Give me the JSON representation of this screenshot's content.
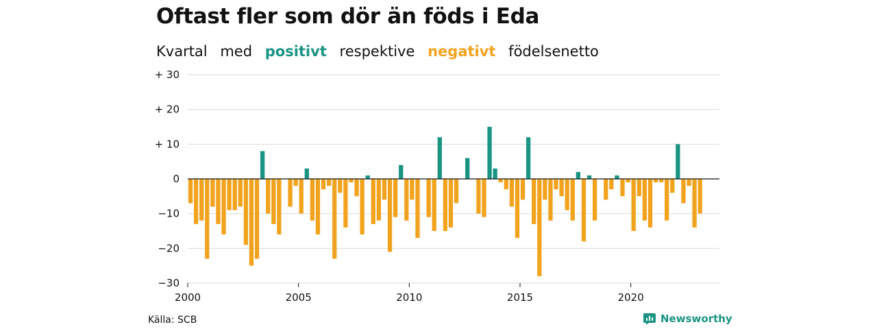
{
  "title": "Oftast fler som dör än föds i Eda",
  "subtitle": {
    "part1": "Kvartal",
    "part2": "med",
    "positive_word": "positivt",
    "part3": "respektive",
    "negative_word": "negativt",
    "part4": "födelsenetto"
  },
  "source": "Källa: SCB",
  "brand": "Newsworthy",
  "colors": {
    "positive": "#1a9483",
    "negative": "#f2a31e",
    "grid": "#d9d9d9",
    "axis": "#111111"
  },
  "chart_data": {
    "type": "bar",
    "x_start": 2000,
    "x_end": 2024,
    "periods_per_year": 4,
    "ylim": [
      -30,
      30
    ],
    "y_ticks": [
      {
        "value": 30,
        "label": "+ 30"
      },
      {
        "value": 20,
        "label": "+ 20"
      },
      {
        "value": 10,
        "label": "+ 10"
      },
      {
        "value": 0,
        "label": "0"
      },
      {
        "value": -10,
        "label": "−10"
      },
      {
        "value": -20,
        "label": "−20"
      },
      {
        "value": -30,
        "label": "−30"
      }
    ],
    "x_ticks": [
      {
        "value": 2000,
        "label": "2000"
      },
      {
        "value": 2005,
        "label": "2005"
      },
      {
        "value": 2010,
        "label": "2010"
      },
      {
        "value": 2015,
        "label": "2015"
      },
      {
        "value": 2020,
        "label": "2020"
      }
    ],
    "values": [
      -7,
      -13,
      -12,
      -23,
      -8,
      -13,
      -16,
      -9,
      -9,
      -8,
      -19,
      -25,
      -23,
      8,
      -10,
      -13,
      -16,
      0,
      -8,
      -2,
      -10,
      3,
      -12,
      -16,
      -3,
      -2,
      -23,
      -4,
      -14,
      -1,
      -5,
      -16,
      1,
      -13,
      -12,
      -6,
      -21,
      -11,
      4,
      -12,
      -6,
      -17,
      0,
      -11,
      -15,
      12,
      -15,
      -14,
      -7,
      0,
      6,
      0,
      -10,
      -11,
      15,
      3,
      -1,
      -3,
      -8,
      -17,
      -6,
      12,
      -13,
      -28,
      -6,
      -12,
      -3,
      -5,
      -9,
      -12,
      2,
      -18,
      1,
      -12,
      0,
      -6,
      -3,
      1,
      -5,
      -1,
      -15,
      -5,
      -12,
      -14,
      -1,
      -1,
      -12,
      -4,
      10,
      -7,
      -2,
      -14,
      -10
    ],
    "grid": true
  }
}
